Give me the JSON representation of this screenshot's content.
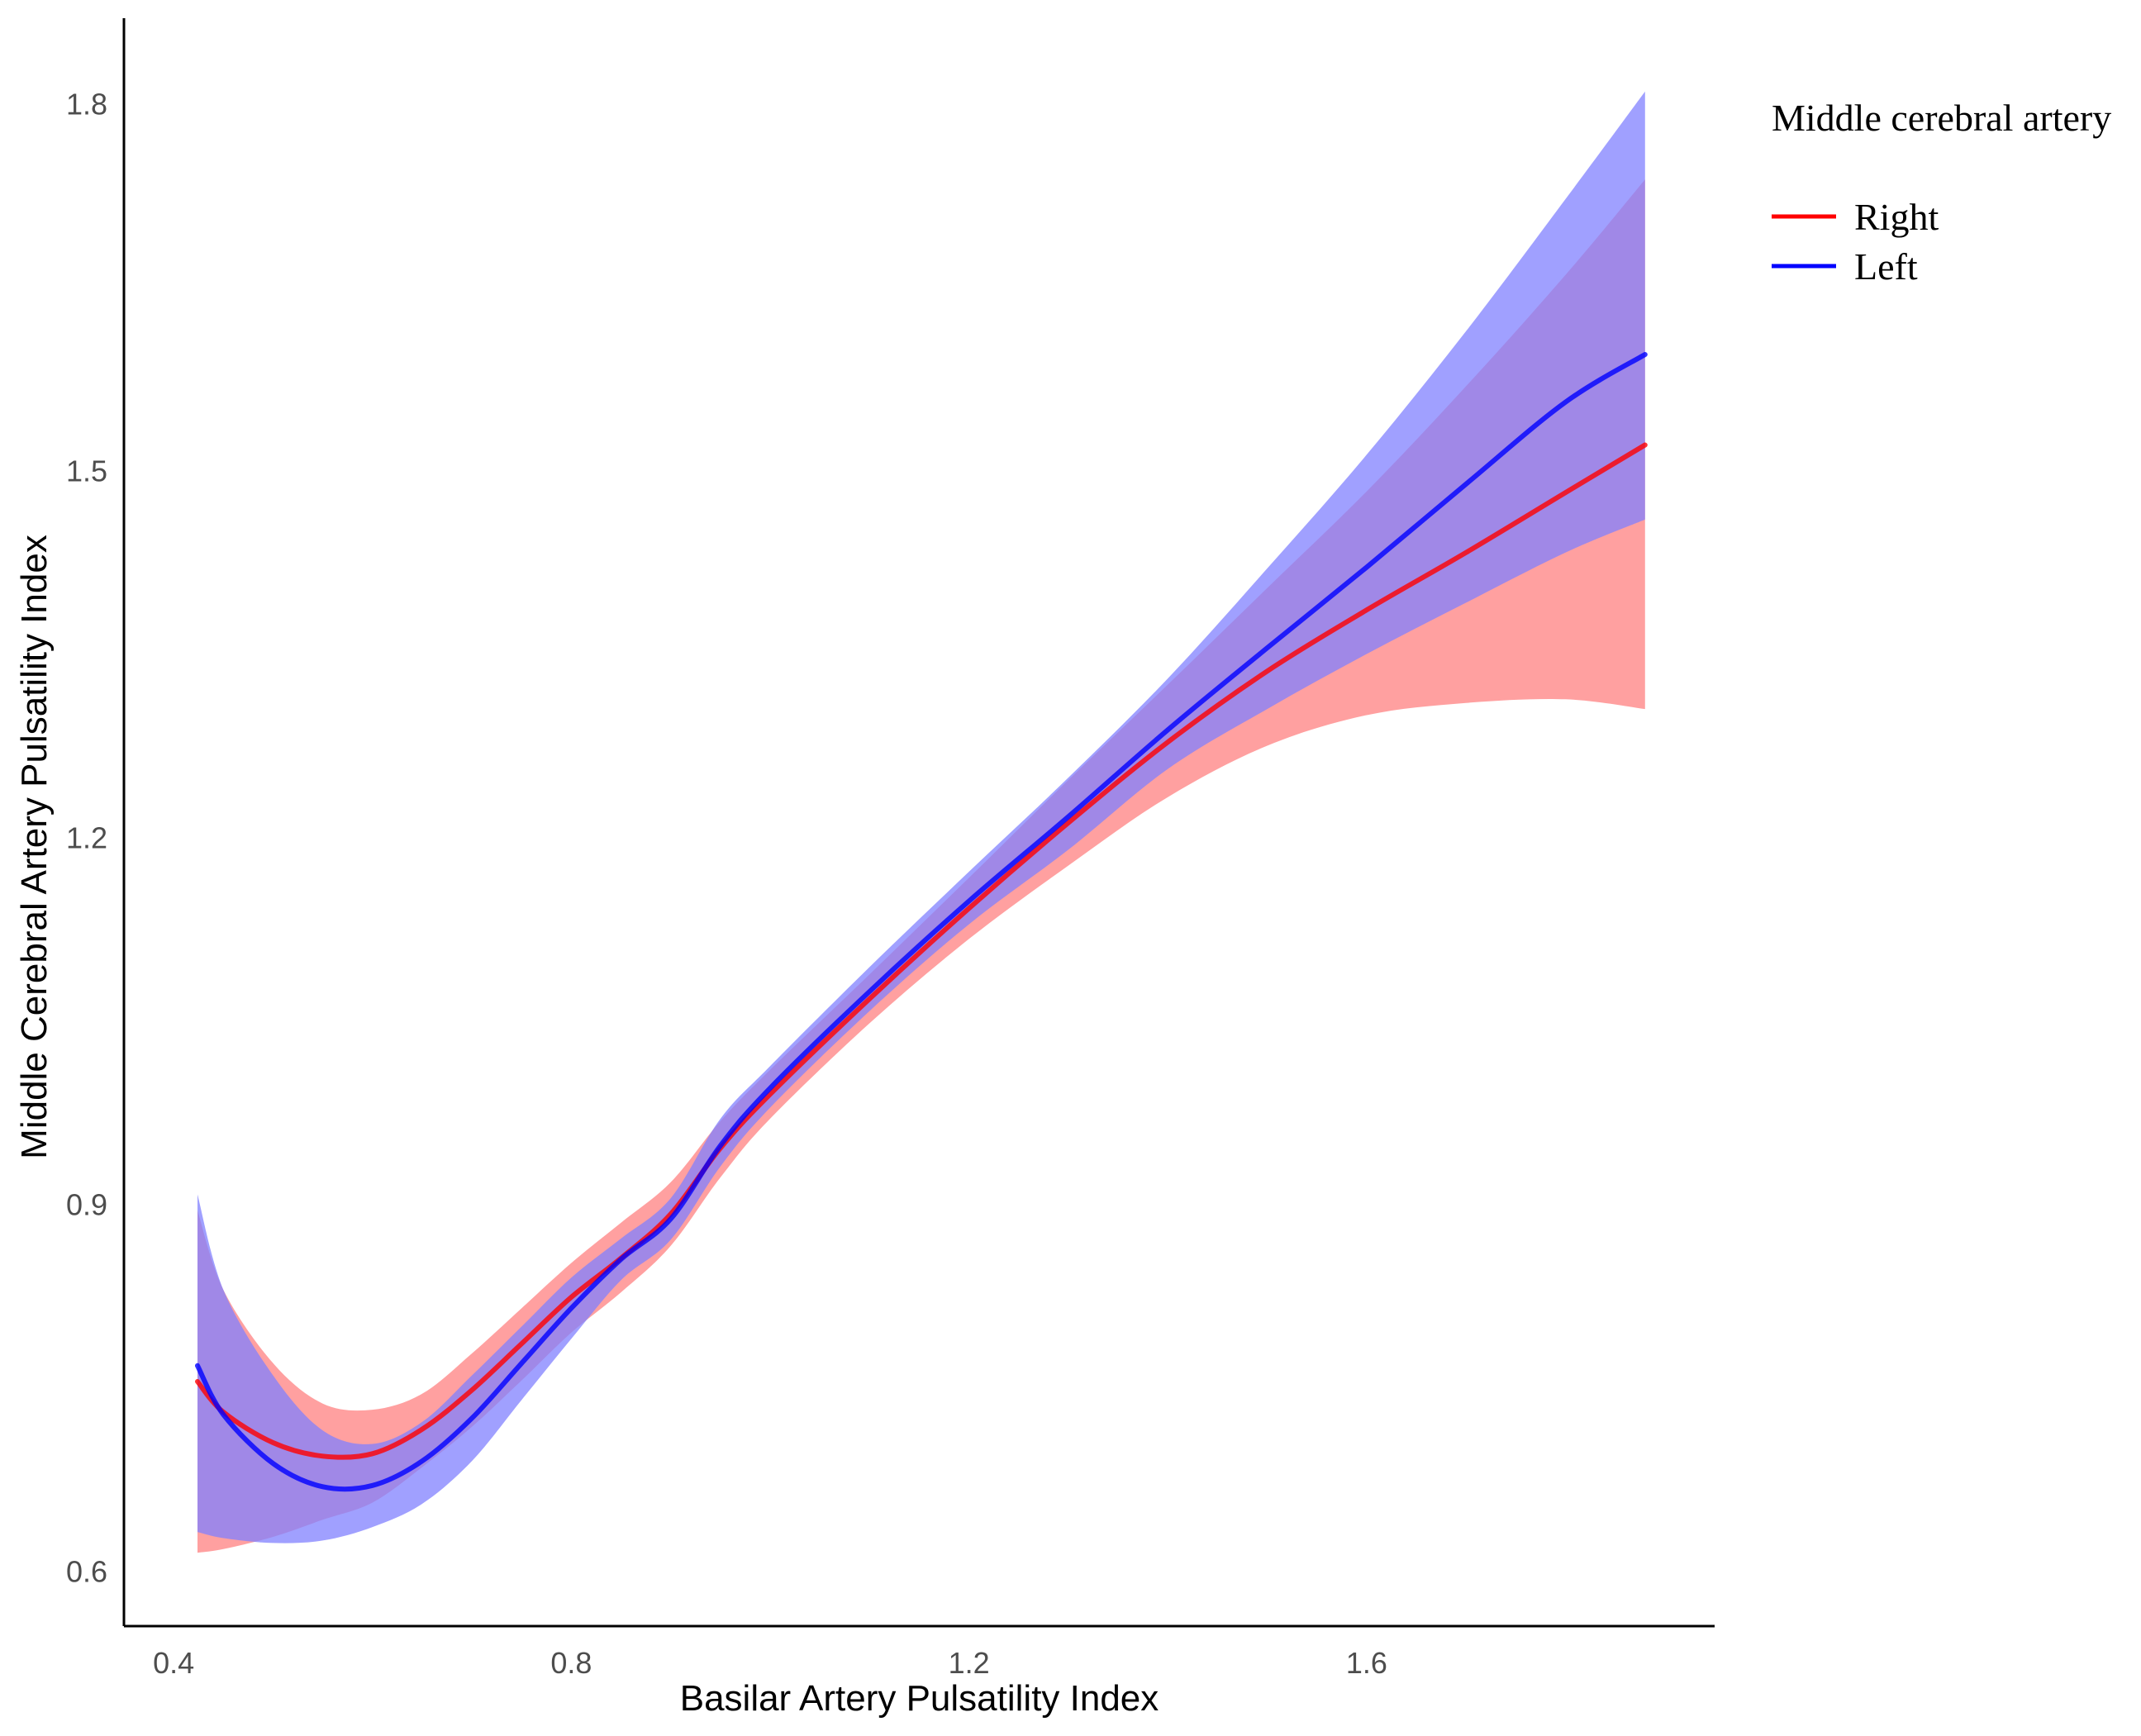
{
  "chart_data": {
    "type": "line",
    "xlabel": "Basilar Artery Pulsatility Index",
    "ylabel": "Middle Cerebral Artery Pulsatility Index",
    "xlim": [
      0.35,
      1.95
    ],
    "ylim": [
      0.555,
      1.87
    ],
    "x_ticks": [
      "0.4",
      "0.8",
      "1.2",
      "1.6"
    ],
    "y_ticks": [
      "0.6",
      "0.9",
      "1.2",
      "1.5",
      "1.8"
    ],
    "x_tick_values": [
      0.4,
      0.8,
      1.2,
      1.6
    ],
    "y_tick_values": [
      0.6,
      0.9,
      1.2,
      1.5,
      1.8
    ],
    "grid": false,
    "legend": {
      "title": "Middle cerebral artery",
      "position": "top-right"
    },
    "series": [
      {
        "name": "Right",
        "color": "#ff0000",
        "band_color": "#ff8080",
        "x": [
          0.424,
          0.45,
          0.5,
          0.55,
          0.6,
          0.65,
          0.7,
          0.75,
          0.8,
          0.85,
          0.9,
          0.95,
          1.0,
          1.1,
          1.2,
          1.3,
          1.4,
          1.5,
          1.6,
          1.7,
          1.8,
          1.88
        ],
        "y": [
          0.755,
          0.73,
          0.705,
          0.694,
          0.696,
          0.716,
          0.748,
          0.786,
          0.824,
          0.856,
          0.892,
          0.946,
          0.99,
          1.068,
          1.142,
          1.212,
          1.278,
          1.336,
          1.386,
          1.433,
          1.482,
          1.521
        ],
        "lower": [
          0.615,
          0.618,
          0.628,
          0.642,
          0.656,
          0.685,
          0.718,
          0.756,
          0.795,
          0.828,
          0.866,
          0.922,
          0.97,
          1.048,
          1.117,
          1.177,
          1.233,
          1.275,
          1.3,
          1.31,
          1.313,
          1.305
        ],
        "upper": [
          0.895,
          0.83,
          0.77,
          0.737,
          0.732,
          0.745,
          0.778,
          0.815,
          0.852,
          0.885,
          0.918,
          0.968,
          1.01,
          1.088,
          1.167,
          1.247,
          1.325,
          1.404,
          1.483,
          1.569,
          1.66,
          1.738
        ]
      },
      {
        "name": "Left",
        "color": "#0000ff",
        "band_color": "#8080ff",
        "x": [
          0.424,
          0.45,
          0.5,
          0.55,
          0.6,
          0.65,
          0.7,
          0.75,
          0.8,
          0.85,
          0.9,
          0.95,
          1.0,
          1.1,
          1.2,
          1.3,
          1.4,
          1.5,
          1.6,
          1.7,
          1.8,
          1.88
        ],
        "y": [
          0.768,
          0.728,
          0.688,
          0.669,
          0.67,
          0.69,
          0.725,
          0.77,
          0.815,
          0.855,
          0.888,
          0.948,
          0.995,
          1.074,
          1.148,
          1.217,
          1.288,
          1.355,
          1.421,
          1.489,
          1.556,
          1.595
        ],
        "lower": [
          0.632,
          0.627,
          0.623,
          0.625,
          0.636,
          0.655,
          0.69,
          0.74,
          0.79,
          0.838,
          0.871,
          0.931,
          0.979,
          1.058,
          1.129,
          1.19,
          1.256,
          1.305,
          1.35,
          1.392,
          1.433,
          1.46
        ],
        "upper": [
          0.908,
          0.83,
          0.76,
          0.715,
          0.704,
          0.722,
          0.76,
          0.8,
          0.84,
          0.872,
          0.905,
          0.97,
          1.013,
          1.094,
          1.172,
          1.249,
          1.33,
          1.42,
          1.513,
          1.614,
          1.722,
          1.81
        ]
      }
    ]
  }
}
